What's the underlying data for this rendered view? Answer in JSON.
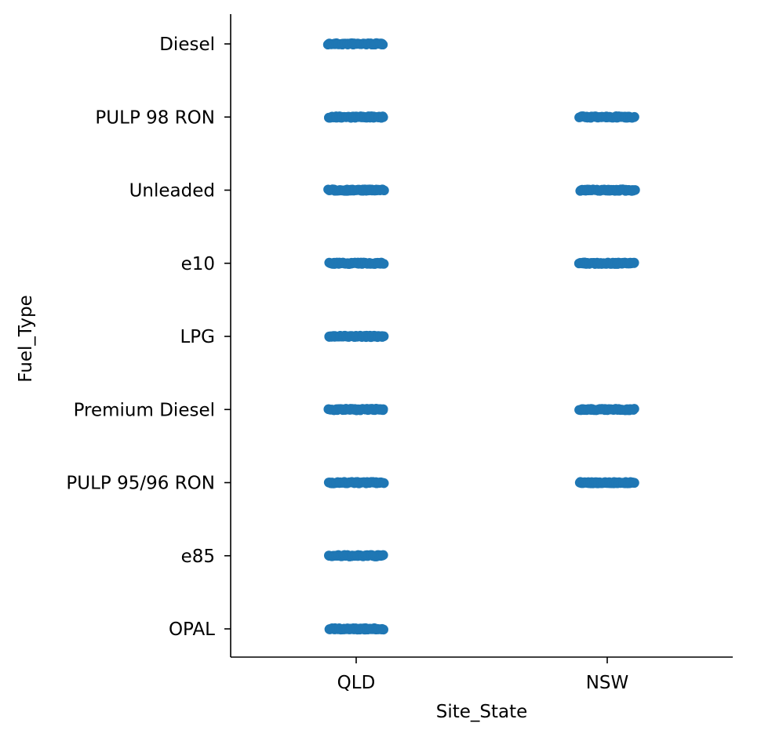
{
  "chart_data": {
    "type": "scatter",
    "subtype": "strip",
    "xlabel": "Site_State",
    "ylabel": "Fuel_Type",
    "x_categories": [
      "QLD",
      "NSW"
    ],
    "y_categories": [
      "Diesel",
      "PULP 98 RON",
      "Unleaded",
      "e10",
      "LPG",
      "Premium Diesel",
      "PULP 95/96 RON",
      "e85",
      "OPAL"
    ],
    "series": [
      {
        "color": "#1f77b4",
        "points": [
          {
            "x": "QLD",
            "y": "Diesel"
          },
          {
            "x": "QLD",
            "y": "PULP 98 RON"
          },
          {
            "x": "QLD",
            "y": "Unleaded"
          },
          {
            "x": "QLD",
            "y": "e10"
          },
          {
            "x": "QLD",
            "y": "LPG"
          },
          {
            "x": "QLD",
            "y": "Premium Diesel"
          },
          {
            "x": "QLD",
            "y": "PULP 95/96 RON"
          },
          {
            "x": "QLD",
            "y": "e85"
          },
          {
            "x": "QLD",
            "y": "OPAL"
          },
          {
            "x": "NSW",
            "y": "PULP 98 RON"
          },
          {
            "x": "NSW",
            "y": "Unleaded"
          },
          {
            "x": "NSW",
            "y": "e10"
          },
          {
            "x": "NSW",
            "y": "Premium Diesel"
          },
          {
            "x": "NSW",
            "y": "PULP 95/96 RON"
          }
        ]
      }
    ],
    "grid": false,
    "spines": [
      "left",
      "bottom"
    ]
  }
}
